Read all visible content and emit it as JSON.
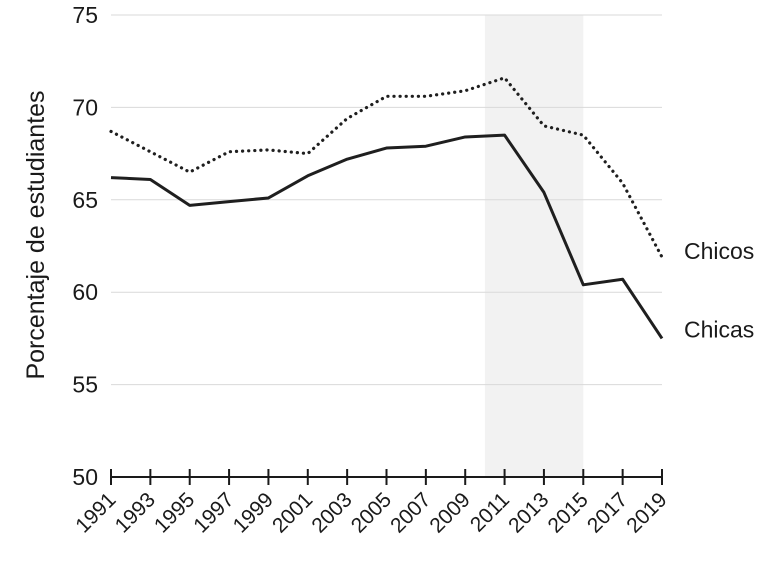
{
  "chart_data": {
    "type": "line",
    "ylabel": "Porcentaje de estudiantes",
    "xlabel": "",
    "ylim": [
      50,
      75
    ],
    "yticks": [
      50,
      55,
      60,
      65,
      70,
      75
    ],
    "xlim": [
      1991,
      2019
    ],
    "x": [
      1991,
      1993,
      1995,
      1997,
      1999,
      2001,
      2003,
      2005,
      2007,
      2009,
      2011,
      2013,
      2015,
      2017,
      2019
    ],
    "shaded_region": [
      2010,
      2015
    ],
    "grid": true,
    "series": [
      {
        "name": "Chicos",
        "style": "dotted",
        "values": [
          68.7,
          67.6,
          66.5,
          67.6,
          67.7,
          67.5,
          69.4,
          70.6,
          70.6,
          70.9,
          71.6,
          69.0,
          68.5,
          65.9,
          61.9
        ]
      },
      {
        "name": "Chicas",
        "style": "solid",
        "values": [
          66.2,
          66.1,
          64.7,
          64.9,
          65.1,
          66.3,
          67.2,
          67.8,
          67.9,
          68.4,
          68.5,
          65.4,
          60.4,
          60.7,
          57.5
        ]
      }
    ]
  },
  "colors": {
    "line": "#1f1f1f",
    "grid": "#d9d9d9",
    "shade": "#f2f2f2",
    "axis": "#1a1a1a"
  }
}
